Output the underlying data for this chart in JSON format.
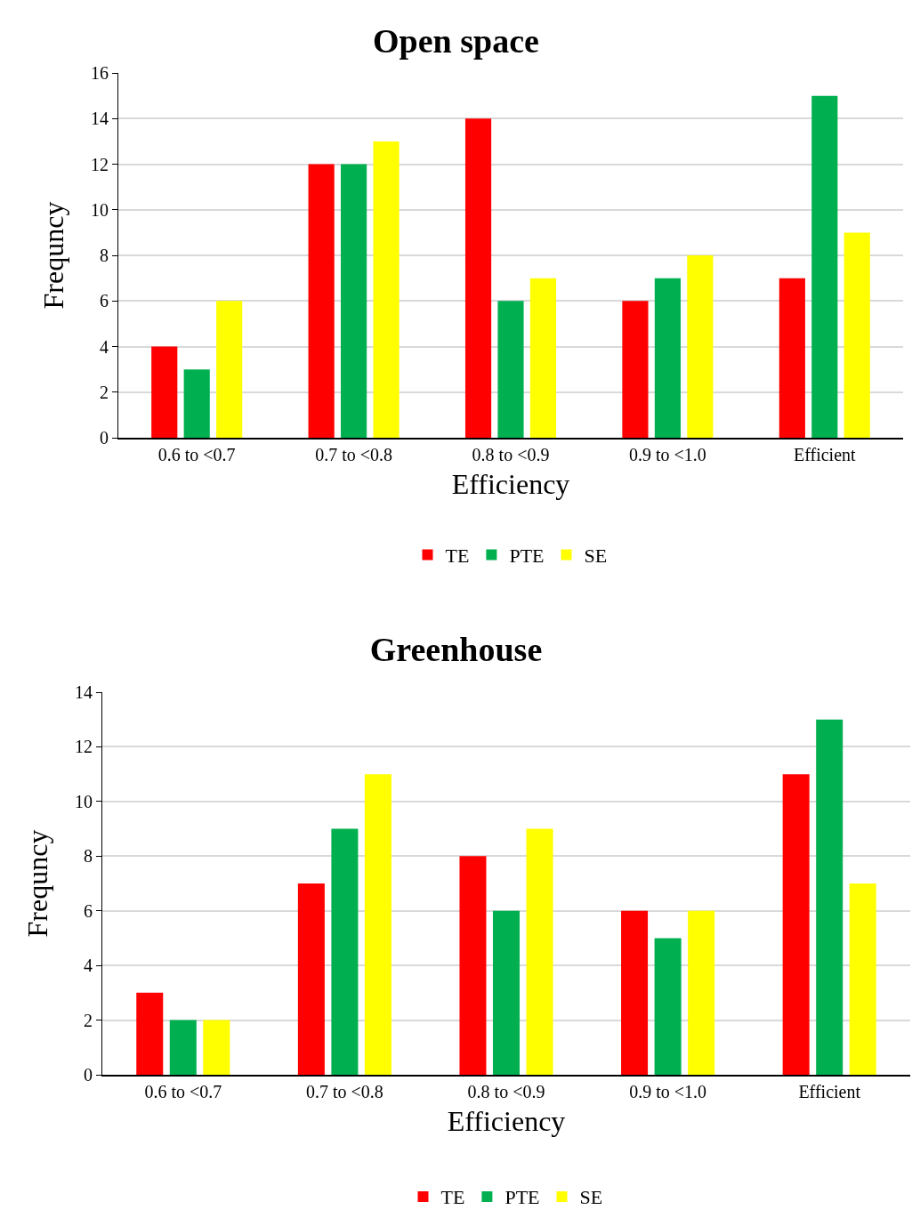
{
  "chart_data": [
    {
      "type": "bar",
      "title": "Open space",
      "xlabel": "Efficiency",
      "ylabel": "Frequncy",
      "categories": [
        "0.6 to <0.7",
        "0.7 to <0.8",
        "0.8 to <0.9",
        "0.9 to <1.0",
        "Efficient"
      ],
      "series": [
        {
          "name": "TE",
          "color": "#ff0000",
          "values": [
            4,
            12,
            14,
            6,
            7
          ]
        },
        {
          "name": "PTE",
          "color": "#00b050",
          "values": [
            3,
            12,
            6,
            7,
            15
          ]
        },
        {
          "name": "SE",
          "color": "#ffff00",
          "values": [
            6,
            13,
            7,
            8,
            9
          ]
        }
      ],
      "ylim": [
        0,
        16
      ],
      "yticks": [
        0,
        2,
        4,
        6,
        8,
        10,
        12,
        14,
        16
      ],
      "grid": "y",
      "legend": "bottom"
    },
    {
      "type": "bar",
      "title": "Greenhouse",
      "xlabel": "Efficiency",
      "ylabel": "Frequncy",
      "categories": [
        "0.6 to <0.7",
        "0.7 to <0.8",
        "0.8 to <0.9",
        "0.9 to <1.0",
        "Efficient"
      ],
      "series": [
        {
          "name": "TE",
          "color": "#ff0000",
          "values": [
            3,
            7,
            8,
            6,
            11
          ]
        },
        {
          "name": "PTE",
          "color": "#00b050",
          "values": [
            2,
            9,
            6,
            5,
            13
          ]
        },
        {
          "name": "SE",
          "color": "#ffff00",
          "values": [
            2,
            11,
            9,
            6,
            7
          ]
        }
      ],
      "ylim": [
        0,
        14
      ],
      "yticks": [
        0,
        2,
        4,
        6,
        8,
        10,
        12,
        14
      ],
      "grid": "y",
      "legend": "bottom"
    }
  ]
}
